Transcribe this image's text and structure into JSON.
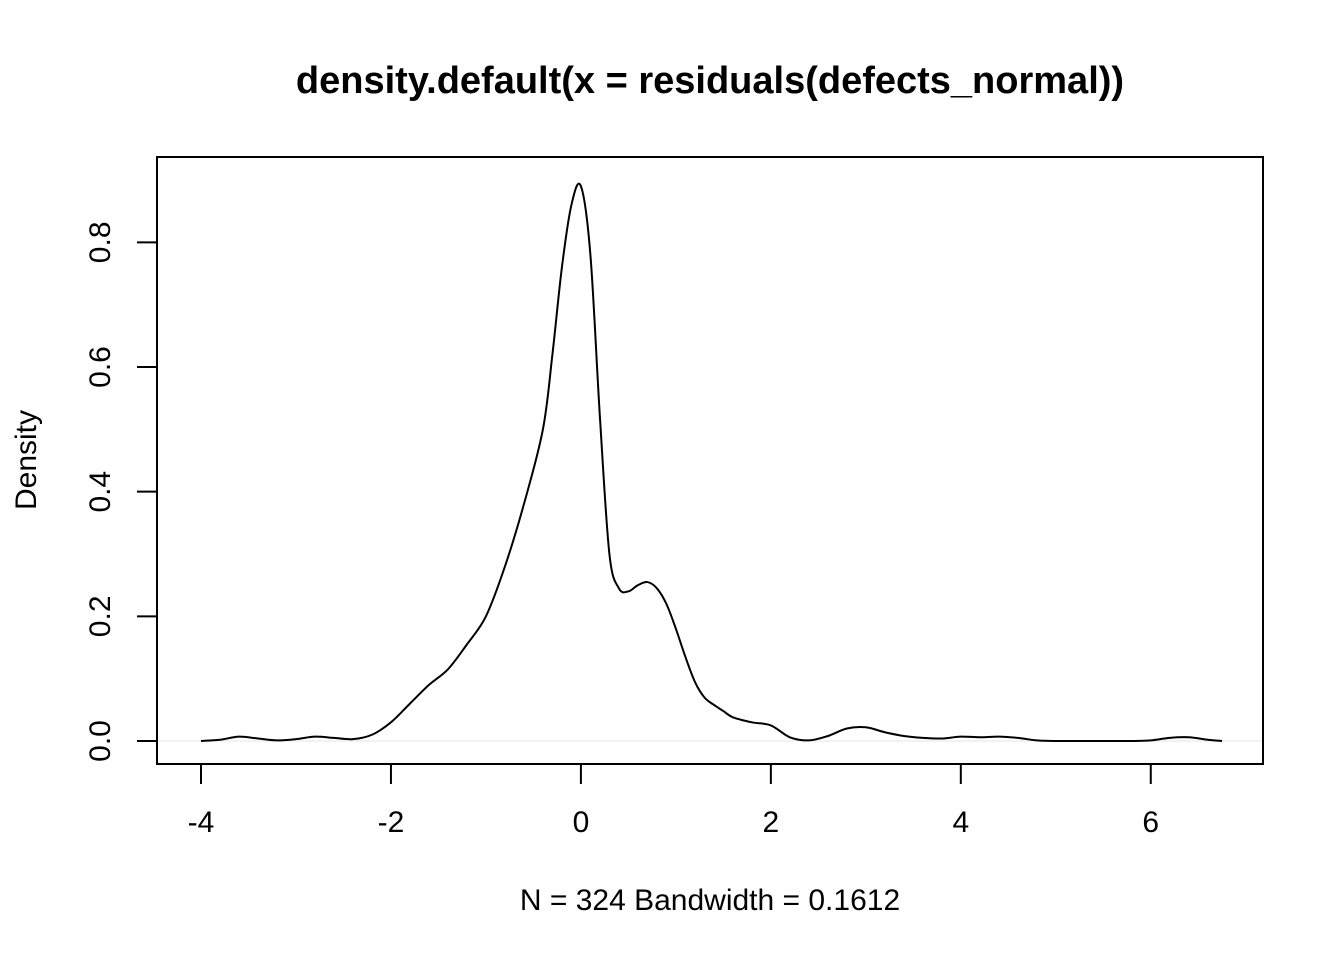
{
  "chart_data": {
    "type": "line",
    "title": "density.default(x = residuals(defects_normal))",
    "xlabel": "N = 324   Bandwidth = 0.1612",
    "ylabel": "Density",
    "xlim": [
      -4.0,
      6.75
    ],
    "ylim": [
      0.0,
      0.9
    ],
    "x_ticks": [
      -4,
      -2,
      0,
      2,
      4,
      6
    ],
    "x_tick_labels": [
      "-4",
      "-2",
      "0",
      "2",
      "4",
      "6"
    ],
    "y_ticks": [
      0.0,
      0.2,
      0.4,
      0.6,
      0.8
    ],
    "y_tick_labels": [
      "0.0",
      "0.2",
      "0.4",
      "0.6",
      "0.8"
    ],
    "grid": false,
    "legend": "none",
    "series": [
      {
        "color": "#000000",
        "x": [
          -4.0,
          -3.8,
          -3.6,
          -3.4,
          -3.2,
          -3.0,
          -2.8,
          -2.6,
          -2.4,
          -2.2,
          -2.0,
          -1.8,
          -1.6,
          -1.4,
          -1.2,
          -1.0,
          -0.8,
          -0.6,
          -0.4,
          -0.3,
          -0.2,
          -0.1,
          0.0,
          0.1,
          0.2,
          0.3,
          0.4,
          0.5,
          0.6,
          0.7,
          0.8,
          0.9,
          1.0,
          1.1,
          1.2,
          1.3,
          1.4,
          1.5,
          1.6,
          1.8,
          2.0,
          2.2,
          2.4,
          2.6,
          2.8,
          3.0,
          3.2,
          3.4,
          3.6,
          3.8,
          4.0,
          4.2,
          4.4,
          4.6,
          4.8,
          5.0,
          5.4,
          5.8,
          6.0,
          6.2,
          6.4,
          6.6,
          6.75
        ],
        "y": [
          0.0,
          0.002,
          0.007,
          0.004,
          0.001,
          0.003,
          0.007,
          0.005,
          0.003,
          0.01,
          0.03,
          0.06,
          0.09,
          0.115,
          0.155,
          0.2,
          0.28,
          0.38,
          0.5,
          0.62,
          0.76,
          0.86,
          0.89,
          0.78,
          0.52,
          0.3,
          0.245,
          0.24,
          0.25,
          0.255,
          0.245,
          0.22,
          0.18,
          0.135,
          0.095,
          0.07,
          0.058,
          0.048,
          0.038,
          0.03,
          0.025,
          0.006,
          0.001,
          0.008,
          0.02,
          0.022,
          0.014,
          0.008,
          0.005,
          0.004,
          0.007,
          0.006,
          0.007,
          0.005,
          0.001,
          0.0,
          0.0,
          0.0,
          0.001,
          0.005,
          0.006,
          0.002,
          0.0
        ]
      }
    ]
  }
}
